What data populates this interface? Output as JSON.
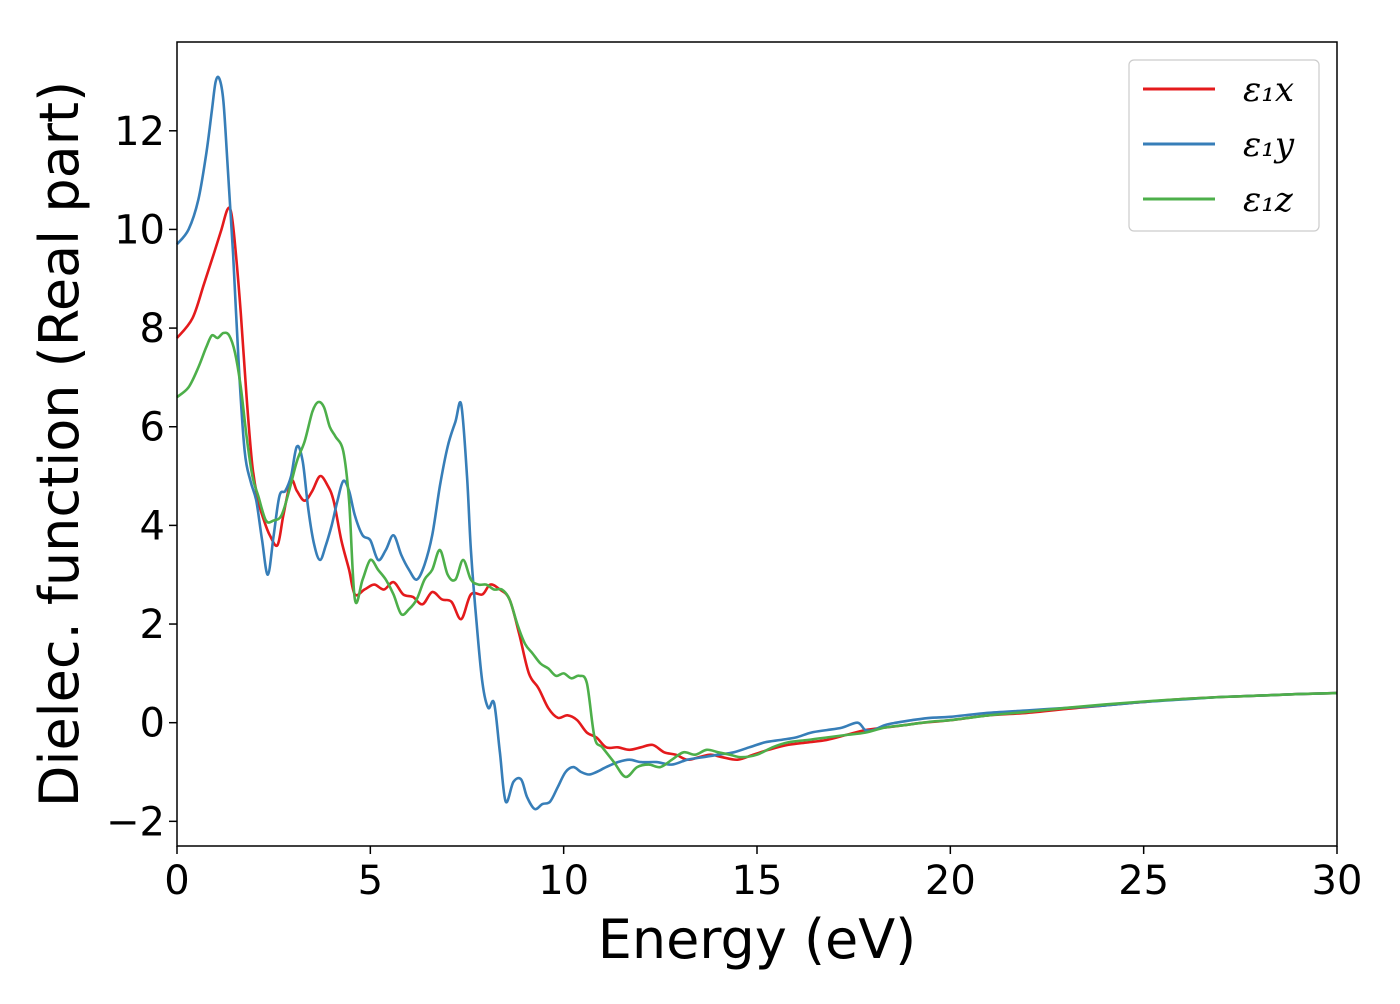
{
  "chart_data": {
    "type": "line",
    "title": "",
    "xlabel": "Energy (eV)",
    "ylabel": "Dielec. function (Real part)",
    "xlim": [
      0,
      30
    ],
    "ylim": [
      -2.5,
      13.8
    ],
    "xticks": [
      0,
      5,
      10,
      15,
      20,
      25,
      30
    ],
    "xtick_labels": [
      "0",
      "5",
      "10",
      "15",
      "20",
      "25",
      "30"
    ],
    "yticks": [
      -2,
      0,
      2,
      4,
      6,
      8,
      10,
      12
    ],
    "ytick_labels": [
      "−2",
      "0",
      "2",
      "4",
      "6",
      "8",
      "10",
      "12"
    ],
    "grid": false,
    "legend_position": "top-right",
    "series": [
      {
        "name": "ε₁x",
        "color": "#e41a1c",
        "x": [
          0,
          0.4,
          0.7,
          0.95,
          1.15,
          1.3,
          1.4,
          1.5,
          1.65,
          1.8,
          1.95,
          2.1,
          2.25,
          2.4,
          2.6,
          2.75,
          2.95,
          3.1,
          3.3,
          3.5,
          3.7,
          3.9,
          4.05,
          4.25,
          4.45,
          4.6,
          4.85,
          5.1,
          5.35,
          5.6,
          5.85,
          6.1,
          6.35,
          6.6,
          6.85,
          7.1,
          7.35,
          7.6,
          7.9,
          8.1,
          8.35,
          8.6,
          8.85,
          9.1,
          9.35,
          9.6,
          9.85,
          10.1,
          10.35,
          10.6,
          10.85,
          11.1,
          11.4,
          11.7,
          12.0,
          12.3,
          12.6,
          12.9,
          13.2,
          13.5,
          13.8,
          14.1,
          14.5,
          14.9,
          15.3,
          15.8,
          16.3,
          16.8,
          17.3,
          17.8,
          18.3,
          18.8,
          19.3,
          20.0,
          21.0,
          22.0,
          23.0,
          24.0,
          25.0,
          26.0,
          27.0,
          28.0,
          29.0,
          30.0
        ],
        "values": [
          7.8,
          8.2,
          8.9,
          9.5,
          10.0,
          10.4,
          10.35,
          9.7,
          8.3,
          6.6,
          5.2,
          4.5,
          4.1,
          3.8,
          3.6,
          4.2,
          4.9,
          4.7,
          4.5,
          4.7,
          5.0,
          4.8,
          4.5,
          3.7,
          3.1,
          2.6,
          2.7,
          2.8,
          2.7,
          2.85,
          2.6,
          2.55,
          2.4,
          2.65,
          2.5,
          2.45,
          2.1,
          2.6,
          2.6,
          2.8,
          2.7,
          2.5,
          1.8,
          1.0,
          0.7,
          0.3,
          0.1,
          0.15,
          0.05,
          -0.2,
          -0.3,
          -0.5,
          -0.5,
          -0.55,
          -0.5,
          -0.45,
          -0.6,
          -0.65,
          -0.75,
          -0.7,
          -0.65,
          -0.7,
          -0.75,
          -0.65,
          -0.55,
          -0.45,
          -0.4,
          -0.35,
          -0.25,
          -0.15,
          -0.1,
          -0.05,
          0.0,
          0.05,
          0.15,
          0.2,
          0.28,
          0.35,
          0.42,
          0.48,
          0.52,
          0.55,
          0.58,
          0.6
        ]
      },
      {
        "name": "ε₁y",
        "color": "#377eb8",
        "x": [
          0,
          0.3,
          0.55,
          0.75,
          0.9,
          1.0,
          1.1,
          1.2,
          1.3,
          1.45,
          1.6,
          1.75,
          1.9,
          2.05,
          2.2,
          2.35,
          2.5,
          2.65,
          2.8,
          2.95,
          3.1,
          3.25,
          3.4,
          3.55,
          3.7,
          3.85,
          4.0,
          4.15,
          4.3,
          4.45,
          4.6,
          4.8,
          5.0,
          5.2,
          5.4,
          5.6,
          5.8,
          6.0,
          6.2,
          6.4,
          6.6,
          6.8,
          7.0,
          7.2,
          7.35,
          7.5,
          7.6,
          7.75,
          7.9,
          8.05,
          8.2,
          8.35,
          8.5,
          8.7,
          8.9,
          9.05,
          9.25,
          9.45,
          9.65,
          9.85,
          10.05,
          10.25,
          10.45,
          10.65,
          10.85,
          11.1,
          11.4,
          11.7,
          12.0,
          12.4,
          12.8,
          13.2,
          13.6,
          14.0,
          14.4,
          14.8,
          15.2,
          15.6,
          16.0,
          16.4,
          16.8,
          17.2,
          17.6,
          17.8,
          18.0,
          18.3,
          18.6,
          19.0,
          19.5,
          20.0,
          21.0,
          22.0,
          23.0,
          24.0,
          25.0,
          26.0,
          27.0,
          28.0,
          29.0,
          30.0
        ],
        "values": [
          9.7,
          10.0,
          10.6,
          11.5,
          12.4,
          13.0,
          13.05,
          12.6,
          11.4,
          9.5,
          7.2,
          5.5,
          4.9,
          4.5,
          3.7,
          3.0,
          3.8,
          4.6,
          4.7,
          5.0,
          5.6,
          5.3,
          4.3,
          3.6,
          3.3,
          3.6,
          4.0,
          4.5,
          4.9,
          4.7,
          4.2,
          3.8,
          3.7,
          3.3,
          3.5,
          3.8,
          3.4,
          3.1,
          2.9,
          3.2,
          3.8,
          4.8,
          5.6,
          6.1,
          6.45,
          5.0,
          3.5,
          2.0,
          0.8,
          0.3,
          0.4,
          -0.6,
          -1.6,
          -1.2,
          -1.15,
          -1.5,
          -1.75,
          -1.65,
          -1.6,
          -1.3,
          -1.0,
          -0.9,
          -1.0,
          -1.05,
          -1.0,
          -0.9,
          -0.8,
          -0.75,
          -0.8,
          -0.8,
          -0.85,
          -0.75,
          -0.7,
          -0.65,
          -0.6,
          -0.5,
          -0.4,
          -0.35,
          -0.3,
          -0.2,
          -0.15,
          -0.1,
          -0.0,
          -0.15,
          -0.15,
          -0.05,
          0.0,
          0.05,
          0.1,
          0.12,
          0.2,
          0.25,
          0.3,
          0.35,
          0.42,
          0.47,
          0.52,
          0.55,
          0.58,
          0.6
        ]
      },
      {
        "name": "ε₁z",
        "color": "#4daf4a",
        "x": [
          0,
          0.3,
          0.55,
          0.75,
          0.9,
          1.05,
          1.2,
          1.35,
          1.5,
          1.65,
          1.8,
          1.95,
          2.1,
          2.3,
          2.5,
          2.7,
          2.9,
          3.1,
          3.3,
          3.5,
          3.65,
          3.8,
          3.95,
          4.1,
          4.3,
          4.45,
          4.6,
          4.8,
          5.0,
          5.2,
          5.4,
          5.6,
          5.8,
          6.0,
          6.2,
          6.4,
          6.6,
          6.8,
          7.0,
          7.2,
          7.4,
          7.6,
          7.8,
          8.0,
          8.2,
          8.4,
          8.6,
          8.8,
          9.0,
          9.2,
          9.4,
          9.6,
          9.8,
          10.0,
          10.2,
          10.4,
          10.6,
          10.8,
          11.0,
          11.3,
          11.6,
          11.9,
          12.2,
          12.5,
          12.8,
          13.1,
          13.4,
          13.7,
          14.0,
          14.3,
          14.6,
          15.0,
          15.4,
          15.8,
          16.3,
          16.8,
          17.3,
          17.8,
          18.3,
          18.8,
          19.5,
          20.0,
          21.0,
          22.0,
          23.0,
          24.0,
          25.0,
          26.0,
          27.0,
          28.0,
          29.0,
          30.0
        ],
        "values": [
          6.6,
          6.8,
          7.2,
          7.6,
          7.85,
          7.8,
          7.9,
          7.85,
          7.5,
          6.8,
          5.8,
          5.0,
          4.6,
          4.1,
          4.1,
          4.2,
          4.7,
          5.3,
          5.7,
          6.3,
          6.5,
          6.4,
          6.0,
          5.8,
          5.5,
          4.5,
          2.5,
          2.9,
          3.3,
          3.1,
          2.9,
          2.6,
          2.2,
          2.3,
          2.5,
          2.9,
          3.1,
          3.5,
          3.0,
          2.9,
          3.3,
          2.9,
          2.8,
          2.8,
          2.7,
          2.7,
          2.5,
          2.0,
          1.6,
          1.4,
          1.2,
          1.1,
          0.95,
          1.0,
          0.9,
          0.95,
          0.8,
          -0.3,
          -0.5,
          -0.8,
          -1.1,
          -0.9,
          -0.85,
          -0.9,
          -0.75,
          -0.6,
          -0.65,
          -0.55,
          -0.6,
          -0.65,
          -0.7,
          -0.65,
          -0.5,
          -0.4,
          -0.35,
          -0.3,
          -0.25,
          -0.2,
          -0.1,
          -0.05,
          0.02,
          0.05,
          0.15,
          0.22,
          0.3,
          0.37,
          0.43,
          0.48,
          0.52,
          0.55,
          0.58,
          0.6
        ]
      }
    ]
  }
}
